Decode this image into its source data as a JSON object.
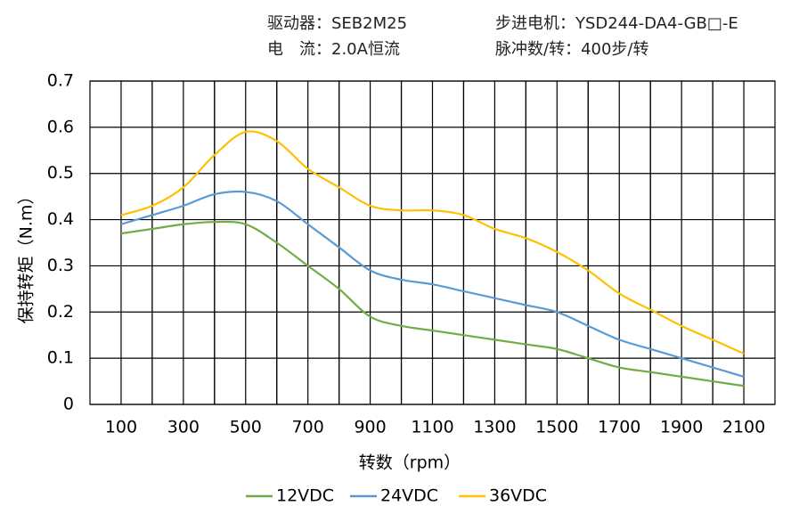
{
  "header": {
    "driver": "驱动器：SEB2M25",
    "motor": "步进电机：YSD244-DA4-GB□-E",
    "current": "电　流：2.0A恒流",
    "pulses": "脉冲数/转：400步/转"
  },
  "chart_data": {
    "type": "line",
    "x_label": "转数（rpm）",
    "y_label": "保持转矩（N.m）",
    "x": [
      100,
      200,
      300,
      400,
      500,
      600,
      700,
      800,
      900,
      1000,
      1100,
      1200,
      1300,
      1400,
      1500,
      1600,
      1700,
      1800,
      1900,
      2000,
      2100
    ],
    "series": [
      {
        "name": "12VDC",
        "color": "#70ad47",
        "values": [
          0.37,
          0.38,
          0.39,
          0.395,
          0.39,
          0.35,
          0.3,
          0.25,
          0.19,
          0.17,
          0.16,
          0.15,
          0.14,
          0.13,
          0.12,
          0.1,
          0.08,
          0.07,
          0.06,
          0.05,
          0.04
        ]
      },
      {
        "name": "24VDC",
        "color": "#5b9bd5",
        "values": [
          0.39,
          0.41,
          0.43,
          0.455,
          0.46,
          0.44,
          0.39,
          0.34,
          0.29,
          0.27,
          0.26,
          0.245,
          0.23,
          0.215,
          0.2,
          0.17,
          0.14,
          0.12,
          0.1,
          0.08,
          0.06
        ]
      },
      {
        "name": "36VDC",
        "color": "#ffc000",
        "values": [
          0.41,
          0.43,
          0.47,
          0.54,
          0.59,
          0.57,
          0.51,
          0.47,
          0.43,
          0.42,
          0.42,
          0.41,
          0.38,
          0.36,
          0.33,
          0.29,
          0.24,
          0.205,
          0.17,
          0.14,
          0.11
        ]
      }
    ],
    "xlim": [
      0,
      2200
    ],
    "xticks": [
      100,
      300,
      500,
      700,
      900,
      1100,
      1300,
      1500,
      1700,
      1900,
      2100
    ],
    "ylim": [
      0,
      0.7
    ],
    "yticks": [
      0,
      0.1,
      0.2,
      0.3,
      0.4,
      0.5,
      0.6,
      0.7
    ],
    "grid": true,
    "legend": "bottom"
  }
}
